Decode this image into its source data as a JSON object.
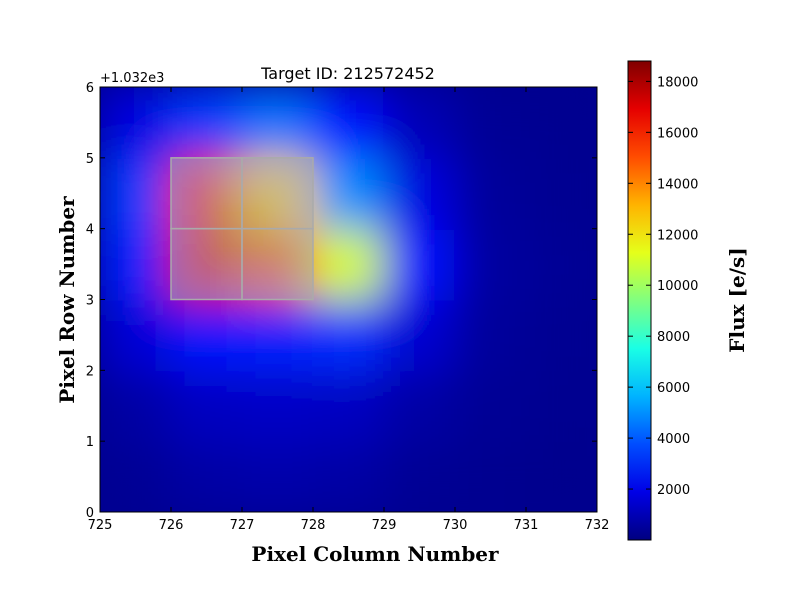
{
  "chart_data": {
    "type": "heatmap",
    "title": "Target ID: 212572452",
    "xlabel": "Pixel Column Number",
    "ylabel": "Pixel Row Number",
    "y_offset_label": "+1.032e3",
    "xlim": [
      725,
      732
    ],
    "ylim": [
      0,
      6
    ],
    "x_ticks": [
      "725",
      "726",
      "727",
      "728",
      "729",
      "730",
      "731",
      "732"
    ],
    "y_ticks": [
      "0",
      "1",
      "2",
      "3",
      "4",
      "5",
      "6"
    ],
    "colormap": "jet",
    "colorbar": {
      "label": "Flux [e/s]",
      "range": [
        0,
        18800
      ],
      "ticks": [
        "2000",
        "4000",
        "6000",
        "8000",
        "10000",
        "12000",
        "14000",
        "16000",
        "18000"
      ]
    },
    "column_centers": [
      725.5,
      726.5,
      727.5,
      728.5,
      729.5,
      730.5,
      731.5
    ],
    "row_centers": [
      0.5,
      1.5,
      2.5,
      3.5,
      4.5,
      5.5
    ],
    "flux_grid": [
      [
        400,
        700,
        800,
        700,
        400,
        300,
        250
      ],
      [
        700,
        1200,
        1300,
        1200,
        700,
        400,
        300
      ],
      [
        1600,
        2800,
        3000,
        3200,
        1500,
        500,
        350
      ],
      [
        3000,
        17000,
        15000,
        11000,
        2500,
        600,
        400
      ],
      [
        3500,
        16500,
        12500,
        5000,
        1800,
        500,
        350
      ],
      [
        1800,
        3500,
        4500,
        2500,
        1000,
        400,
        300
      ]
    ],
    "aperture": {
      "pixels": [
        [
          726,
          3
        ],
        [
          727,
          3
        ],
        [
          726,
          4
        ],
        [
          727,
          4
        ]
      ],
      "overlay_color": "#aaaaaa"
    },
    "grid": false
  }
}
